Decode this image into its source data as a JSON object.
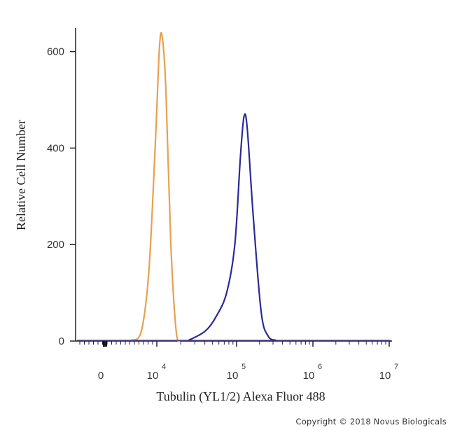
{
  "chart_data": {
    "type": "line",
    "title": "",
    "xlabel": "Tubulin (YL1/2) Alexa Fluor 488",
    "ylabel": "Relative Cell Number",
    "x_scale": "biexponential",
    "x_tick_labels": [
      {
        "base": "0",
        "exp": ""
      },
      {
        "base": "10",
        "exp": "4"
      },
      {
        "base": "10",
        "exp": "5"
      },
      {
        "base": "10",
        "exp": "6"
      },
      {
        "base": "10",
        "exp": "7"
      }
    ],
    "x_tick_values": [
      0,
      10000,
      100000,
      1000000,
      10000000
    ],
    "y_ticks": [
      "0",
      "200",
      "400",
      "600"
    ],
    "y_tick_values": [
      0,
      200,
      400,
      600
    ],
    "ylim": [
      0,
      650
    ],
    "grid": false,
    "legend": "none",
    "series": [
      {
        "color": "#e8a050",
        "x": [
          5000,
          7000,
          8500,
          9800,
          10800,
          11700,
          13000,
          15000,
          17500,
          20000
        ],
        "y": [
          0,
          20,
          150,
          430,
          610,
          630,
          520,
          200,
          20,
          0
        ]
      },
      {
        "color": "#2a2a9a",
        "x": [
          25000,
          40000,
          55000,
          75000,
          95000,
          112000,
          125000,
          138000,
          165000,
          210000,
          260000,
          330000
        ],
        "y": [
          0,
          20,
          50,
          100,
          200,
          380,
          465,
          440,
          260,
          60,
          10,
          0
        ]
      }
    ]
  },
  "copyright": "Copyright © 2018 Novus Biologicals"
}
